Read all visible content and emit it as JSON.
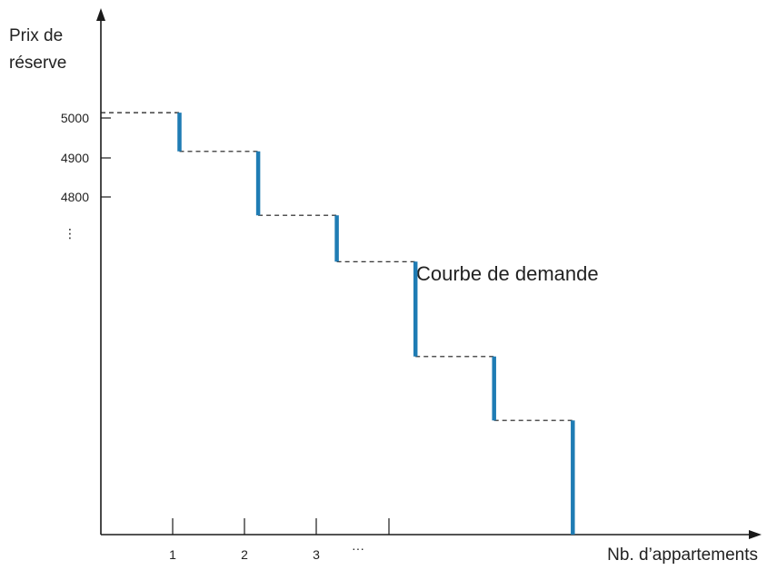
{
  "chart_data": {
    "type": "line",
    "ylabel": [
      "Prix de",
      "réserve"
    ],
    "xlabel": "Nb. d’appartements",
    "annotation": "Courbe de demande",
    "y_ticks": [
      "5000",
      "4900",
      "4800"
    ],
    "y_ellipsis": "⋮",
    "x_ticks": [
      "1",
      "2",
      "3"
    ],
    "x_ellipsis": "···",
    "series": [
      {
        "steps": [
          {
            "q": 1,
            "price": 5000
          },
          {
            "q": 2,
            "price": 4900
          },
          {
            "q": 3,
            "price": 4735
          },
          {
            "q": 4,
            "price": 4615
          },
          {
            "q": 5,
            "price": 4370
          },
          {
            "q": 6,
            "price": 4205
          }
        ],
        "floor_price": 3910,
        "color": "#1f7cb4"
      }
    ],
    "xlim": [
      0,
      8.4
    ],
    "ylim": [
      3910,
      5270
    ],
    "grid": false,
    "guide_lines": "dashed",
    "axis_color": "#1a1a1a"
  }
}
